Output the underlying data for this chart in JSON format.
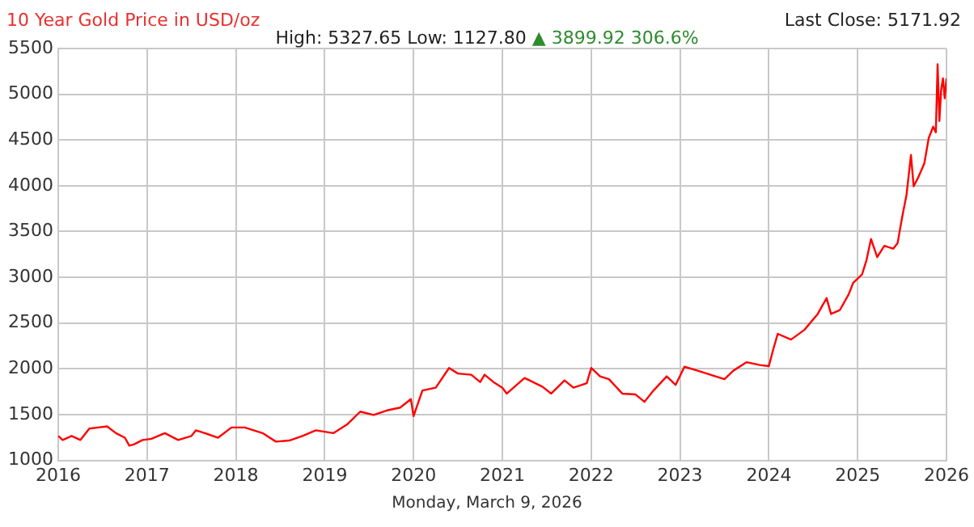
{
  "chart_data": {
    "type": "line",
    "title": "10 Year Gold Price in USD/oz",
    "subtitle": "High: 5327.65 Low: 1127.80",
    "annotations": [
      "▲ 3899.92 306.6%",
      "Last Close: 5171.92",
      "Monday, March 9, 2026"
    ],
    "x": [
      2016,
      2016.05,
      2016.15,
      2016.25,
      2016.35,
      2016.45,
      2016.55,
      2016.65,
      2016.75,
      2016.8,
      2016.85,
      2016.95,
      2017.05,
      2017.2,
      2017.35,
      2017.5,
      2017.55,
      2017.65,
      2017.8,
      2017.95,
      2018.1,
      2018.3,
      2018.45,
      2018.6,
      2018.75,
      2018.9,
      2019.1,
      2019.25,
      2019.4,
      2019.55,
      2019.7,
      2019.85,
      2019.97,
      2020,
      2020.1,
      2020.25,
      2020.4,
      2020.5,
      2020.65,
      2020.75,
      2020.8,
      2020.9,
      2021,
      2021.05,
      2021.25,
      2021.45,
      2021.55,
      2021.7,
      2021.8,
      2021.95,
      2022,
      2022.1,
      2022.2,
      2022.35,
      2022.5,
      2022.6,
      2022.7,
      2022.85,
      2022.95,
      2023.05,
      2023.2,
      2023.4,
      2023.5,
      2023.6,
      2023.75,
      2023.9,
      2024,
      2024.05,
      2024.1,
      2024.25,
      2024.4,
      2024.55,
      2024.65,
      2024.7,
      2024.8,
      2024.9,
      2024.95,
      2025.05,
      2025.1,
      2025.15,
      2025.22,
      2025.3,
      2025.4,
      2025.45,
      2025.5,
      2025.55,
      2025.6,
      2025.63,
      2025.68,
      2025.75,
      2025.8,
      2025.85,
      2025.88,
      2025.9,
      2025.92,
      2025.94,
      2025.96,
      2025.98,
      2026
    ],
    "series": [
      {
        "color": "#ff0000",
        "values": [
          1267,
          1223,
          1267,
          1223,
          1347,
          1360,
          1372,
          1298,
          1248,
          1161,
          1174,
          1223,
          1236,
          1298,
          1223,
          1267,
          1329,
          1298,
          1248,
          1360,
          1360,
          1298,
          1205,
          1217,
          1267,
          1329,
          1298,
          1391,
          1533,
          1496,
          1546,
          1577,
          1670,
          1484,
          1763,
          1794,
          2010,
          1949,
          1936,
          1856,
          1936,
          1856,
          1794,
          1730,
          1900,
          1806,
          1730,
          1874,
          1794,
          1843,
          2010,
          1918,
          1887,
          1730,
          1720,
          1640,
          1762,
          1918,
          1825,
          2023,
          1980,
          1918,
          1887,
          1980,
          2073,
          2042,
          2030,
          2215,
          2383,
          2320,
          2426,
          2600,
          2773,
          2600,
          2643,
          2817,
          2941,
          3034,
          3190,
          3419,
          3220,
          3344,
          3313,
          3375,
          3654,
          3902,
          4336,
          3995,
          4088,
          4243,
          4522,
          4646,
          4584,
          5328,
          4708,
          5049,
          5173,
          4956,
          5172
        ]
      }
    ],
    "xlim": [
      2016,
      2026
    ],
    "xticks": [
      2016,
      2017,
      2018,
      2019,
      2020,
      2021,
      2022,
      2023,
      2024,
      2025,
      2026
    ],
    "ylim": [
      1000,
      5500
    ],
    "yticks": [
      1000,
      1500,
      2000,
      2500,
      3000,
      3500,
      4000,
      4500,
      5000,
      5500
    ],
    "grid": true,
    "legend": false,
    "marker": "none",
    "line_style": "solid"
  }
}
